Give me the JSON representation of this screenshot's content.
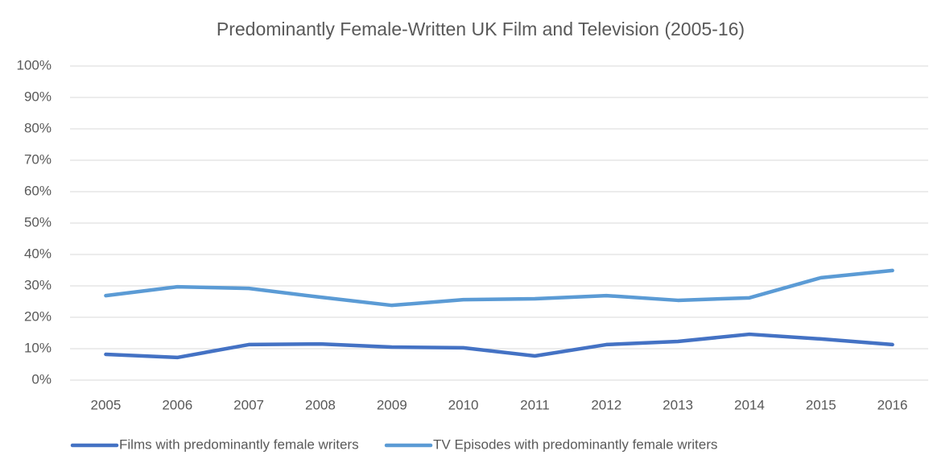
{
  "chart_data": {
    "type": "line",
    "title": "Predominantly Female-Written UK Film and Television (2005-16)",
    "categories": [
      "2005",
      "2006",
      "2007",
      "2008",
      "2009",
      "2010",
      "2011",
      "2012",
      "2013",
      "2014",
      "2015",
      "2016"
    ],
    "series": [
      {
        "name": "Films with predominantly female writers",
        "color": "#4472c4",
        "values": [
          8.2,
          7.2,
          11.3,
          11.5,
          10.5,
          10.3,
          7.7,
          11.3,
          12.3,
          14.6,
          13.1,
          11.3
        ]
      },
      {
        "name": "TV Episodes with predominantly female writers",
        "color": "#5b9bd5",
        "values": [
          26.9,
          29.7,
          29.2,
          26.4,
          23.8,
          25.6,
          25.9,
          26.9,
          25.4,
          26.2,
          32.6,
          34.9
        ]
      }
    ],
    "ylim": [
      0,
      100
    ],
    "yticks": [
      {
        "value": 0,
        "label": "0%"
      },
      {
        "value": 10,
        "label": "10%"
      },
      {
        "value": 20,
        "label": "20%"
      },
      {
        "value": 30,
        "label": "30%"
      },
      {
        "value": 40,
        "label": "40%"
      },
      {
        "value": 50,
        "label": "50%"
      },
      {
        "value": 60,
        "label": "60%"
      },
      {
        "value": 70,
        "label": "70%"
      },
      {
        "value": 80,
        "label": "80%"
      },
      {
        "value": 90,
        "label": "90%"
      },
      {
        "value": 100,
        "label": "100%"
      }
    ],
    "grid": true,
    "legend": "bottom"
  }
}
